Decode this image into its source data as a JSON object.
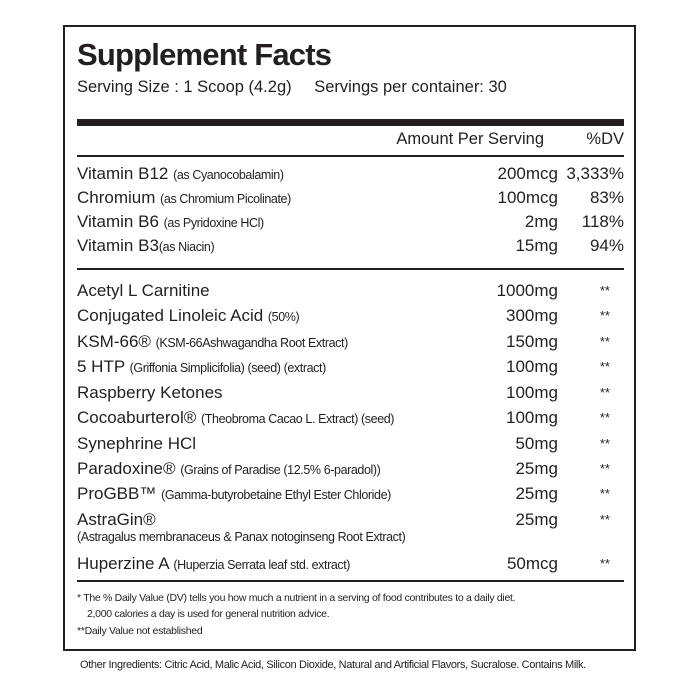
{
  "title": "Supplement Facts",
  "serving_size": "Serving Size : 1 Scoop (4.2g)",
  "servings_per_container": "Servings per container: 30",
  "header": {
    "amount": "Amount Per Serving",
    "dv": "%DV"
  },
  "vitamins": [
    {
      "name": "Vitamin B12",
      "detail": "(as Cyanocobalamin)",
      "amount": "200mcg",
      "dv": "3,333%"
    },
    {
      "name": "Chromium",
      "detail": "(as Chromium Picolinate)",
      "amount": "100mcg",
      "dv": "83%"
    },
    {
      "name": "Vitamin B6",
      "detail": "(as Pyridoxine HCl)",
      "amount": "2mg",
      "dv": "118%"
    },
    {
      "name": "Vitamin B3",
      "detail": "(as Niacin)",
      "amount": "15mg",
      "dv": "94%"
    }
  ],
  "blend": [
    {
      "name": "Acetyl L Carnitine",
      "detail": "",
      "amount": "1000mg",
      "dv": "**"
    },
    {
      "name": "Conjugated Linoleic Acid",
      "detail": "(50%)",
      "amount": "300mg",
      "dv": "**"
    },
    {
      "name": "KSM-66®",
      "detail": "(KSM-66Ashwagandha Root Extract)",
      "amount": "150mg",
      "dv": "**"
    },
    {
      "name": "5 HTP",
      "detail": "(Griffonia Simplicifolia) (seed) (extract)",
      "amount": "100mg",
      "dv": "**"
    },
    {
      "name": "Raspberry Ketones",
      "detail": "",
      "amount": "100mg",
      "dv": "**"
    },
    {
      "name": "Cocoaburterol®",
      "detail": "(Theobroma Cacao L. Extract) (seed)",
      "amount": "100mg",
      "dv": "**"
    },
    {
      "name": "Synephrine HCl",
      "detail": "",
      "amount": "50mg",
      "dv": "**"
    },
    {
      "name": "Paradoxine®",
      "detail": "(Grains of Paradise (12.5% 6-paradol))",
      "amount": "25mg",
      "dv": "**"
    },
    {
      "name": "ProGBB™",
      "detail": "(Gamma-butyrobetaine Ethyl Ester Chloride)",
      "amount": "25mg",
      "dv": "**"
    },
    {
      "name": "AstraGin®",
      "detail": "(Astragalus membranaceus & Panax notoginseng Root Extract)",
      "amount": "25mg",
      "dv": "**"
    },
    {
      "name": "Huperzine A",
      "detail": "(Huperzia Serrata leaf std. extract)",
      "amount": "50mcg",
      "dv": "**"
    }
  ],
  "footnotes": [
    "* The % Daily Value (DV) tells you how much a nutrient in a serving of food contributes to a daily diet.",
    "2,000 calories a day is used for general nutrition advice.",
    "**Daily Value not established"
  ],
  "other_ingredients": "Other Ingredients: Citric Acid, Malic Acid, Silicon Dioxide, Natural and Artificial Flavors, Sucralose. Contains Milk."
}
